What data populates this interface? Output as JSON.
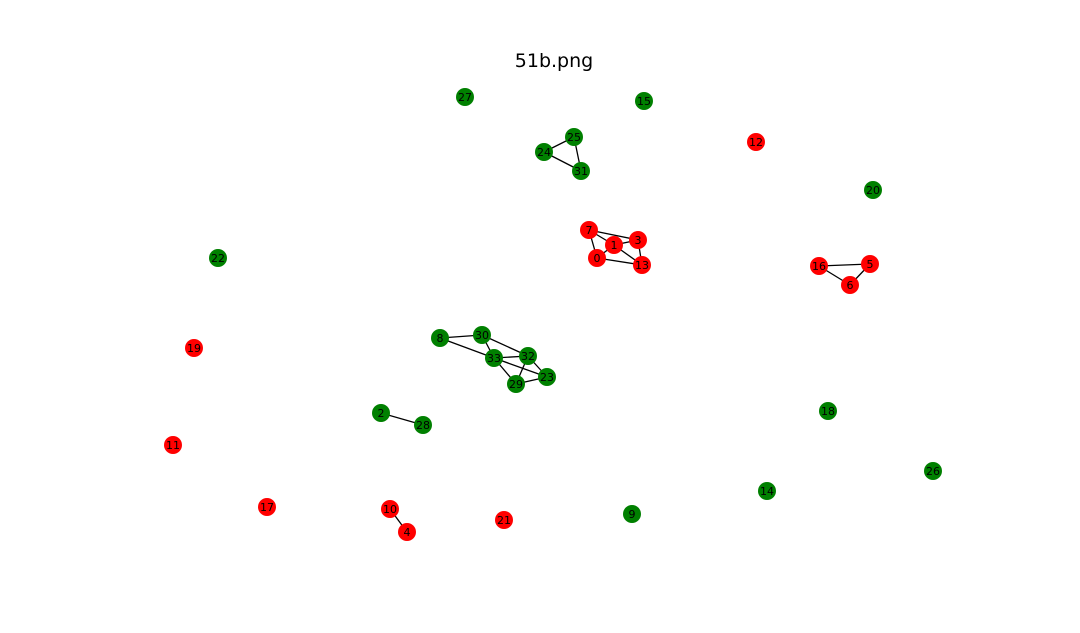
{
  "title": "51b.png",
  "colors": {
    "red": "#ff0000",
    "green": "#008000"
  },
  "graph": {
    "nodes": [
      {
        "id": "0",
        "color": "red"
      },
      {
        "id": "1",
        "color": "red"
      },
      {
        "id": "2",
        "color": "green"
      },
      {
        "id": "3",
        "color": "red"
      },
      {
        "id": "4",
        "color": "red"
      },
      {
        "id": "5",
        "color": "red"
      },
      {
        "id": "6",
        "color": "red"
      },
      {
        "id": "7",
        "color": "red"
      },
      {
        "id": "8",
        "color": "green"
      },
      {
        "id": "9",
        "color": "green"
      },
      {
        "id": "10",
        "color": "red"
      },
      {
        "id": "11",
        "color": "red"
      },
      {
        "id": "12",
        "color": "red"
      },
      {
        "id": "13",
        "color": "red"
      },
      {
        "id": "14",
        "color": "green"
      },
      {
        "id": "15",
        "color": "green"
      },
      {
        "id": "16",
        "color": "red"
      },
      {
        "id": "17",
        "color": "red"
      },
      {
        "id": "18",
        "color": "green"
      },
      {
        "id": "19",
        "color": "red"
      },
      {
        "id": "20",
        "color": "green"
      },
      {
        "id": "21",
        "color": "red"
      },
      {
        "id": "22",
        "color": "green"
      },
      {
        "id": "23",
        "color": "green"
      },
      {
        "id": "24",
        "color": "green"
      },
      {
        "id": "25",
        "color": "green"
      },
      {
        "id": "26",
        "color": "green"
      },
      {
        "id": "27",
        "color": "green"
      },
      {
        "id": "28",
        "color": "green"
      },
      {
        "id": "29",
        "color": "green"
      },
      {
        "id": "30",
        "color": "green"
      },
      {
        "id": "31",
        "color": "green"
      },
      {
        "id": "32",
        "color": "green"
      },
      {
        "id": "33",
        "color": "green"
      }
    ],
    "edges": [
      [
        "7",
        "1"
      ],
      [
        "7",
        "3"
      ],
      [
        "7",
        "0"
      ],
      [
        "1",
        "3"
      ],
      [
        "1",
        "0"
      ],
      [
        "1",
        "13"
      ],
      [
        "0",
        "13"
      ],
      [
        "3",
        "13"
      ],
      [
        "16",
        "5"
      ],
      [
        "16",
        "6"
      ],
      [
        "5",
        "6"
      ],
      [
        "24",
        "25"
      ],
      [
        "24",
        "31"
      ],
      [
        "25",
        "31"
      ],
      [
        "8",
        "30"
      ],
      [
        "8",
        "33"
      ],
      [
        "30",
        "33"
      ],
      [
        "30",
        "32"
      ],
      [
        "33",
        "32"
      ],
      [
        "33",
        "29"
      ],
      [
        "33",
        "23"
      ],
      [
        "32",
        "29"
      ],
      [
        "32",
        "23"
      ],
      [
        "29",
        "23"
      ],
      [
        "2",
        "28"
      ],
      [
        "10",
        "4"
      ]
    ]
  }
}
